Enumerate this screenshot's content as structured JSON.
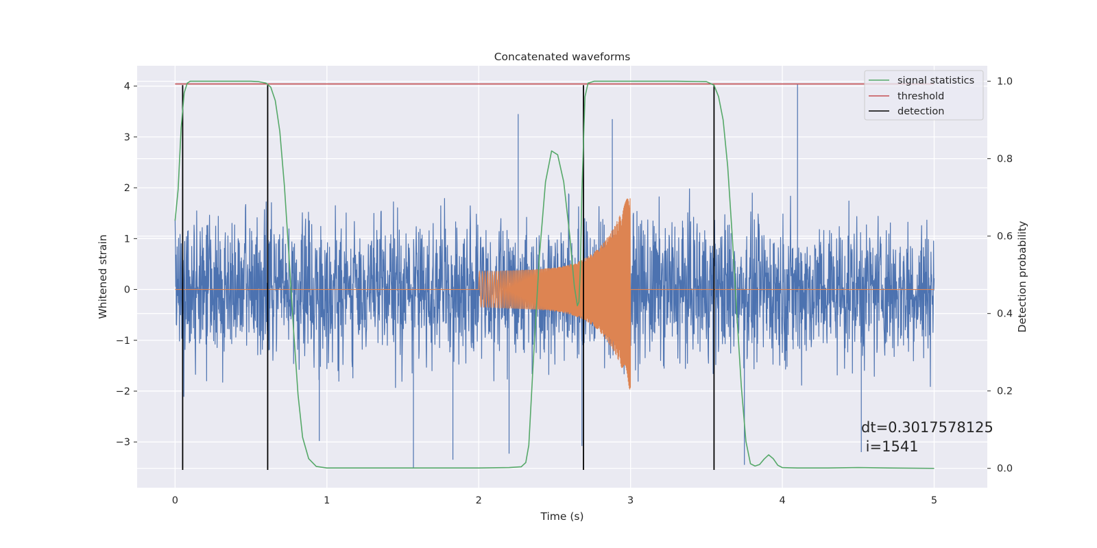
{
  "chart_data": {
    "type": "line",
    "title": "Concatenated waveforms",
    "xlabel": "Time (s)",
    "ylabel": "Whitened strain",
    "y2label": "Detection probability",
    "xlim": [
      -0.25,
      5.35
    ],
    "ylim": [
      -3.9,
      4.4
    ],
    "y2lim": [
      -0.05,
      1.04
    ],
    "x_ticks": [
      0,
      1,
      2,
      3,
      4,
      5
    ],
    "x_tick_labels": [
      "0",
      "1",
      "2",
      "3",
      "4",
      "5"
    ],
    "y_ticks": [
      -3,
      -2,
      -1,
      0,
      1,
      2,
      3,
      4
    ],
    "y_tick_labels": [
      "−3",
      "−2",
      "−1",
      "0",
      "1",
      "2",
      "3",
      "4"
    ],
    "y2_ticks": [
      0,
      0.2,
      0.4,
      0.6,
      0.8,
      1.0
    ],
    "y2_tick_labels": [
      "0.0",
      "0.2",
      "0.4",
      "0.6",
      "0.8",
      "1.0"
    ],
    "grid": true,
    "legend_position": "top-right",
    "colors": {
      "background": "#eaeaf2",
      "grid": "#ffffff",
      "strain": "#4c72b0",
      "injected_waveform": "#dd8452",
      "signal_statistics": "#55a868",
      "threshold": "#c44e52",
      "detection": "#000000"
    },
    "series": [
      {
        "key": "strain",
        "axis": "left",
        "description": "noisy whitened strain, 0–5 s, amplitude mostly within ±2.5 with spikes to ~4",
        "x_range": [
          0,
          5
        ],
        "spikes": [
          {
            "x": 0.61,
            "y": 3.48
          },
          {
            "x": 2.26,
            "y": 3.45
          },
          {
            "x": 2.88,
            "y": 3.35
          },
          {
            "x": 4.1,
            "y": 4.03
          },
          {
            "x": 1.57,
            "y": -3.52
          },
          {
            "x": 1.83,
            "y": -3.35
          },
          {
            "x": 2.2,
            "y": -3.23
          },
          {
            "x": 2.68,
            "y": -3.08
          },
          {
            "x": 3.55,
            "y": -2.98
          },
          {
            "x": 0.95,
            "y": -2.98
          },
          {
            "x": 3.75,
            "y": -3.45
          },
          {
            "x": 4.52,
            "y": -3.2
          }
        ]
      },
      {
        "key": "injected_waveform",
        "axis": "left",
        "description": "chirp from 2.0 s to 3.0 s, amplitude rising from ~0.35 to ~1.9",
        "x_range": [
          2.0,
          3.0
        ],
        "amplitude_start": 0.35,
        "amplitude_end": 1.9
      },
      {
        "name": "signal statistics",
        "key": "signal_statistics",
        "axis": "right",
        "x": [
          0,
          0.02,
          0.04,
          0.06,
          0.08,
          0.1,
          0.2,
          0.3,
          0.4,
          0.5,
          0.55,
          0.6,
          0.63,
          0.66,
          0.69,
          0.72,
          0.75,
          0.78,
          0.81,
          0.84,
          0.88,
          0.93,
          1.0,
          1.5,
          2.0,
          2.2,
          2.28,
          2.31,
          2.33,
          2.36,
          2.4,
          2.44,
          2.48,
          2.52,
          2.56,
          2.6,
          2.63,
          2.65,
          2.66,
          2.67,
          2.68,
          2.7,
          2.72,
          2.76,
          2.8,
          3.0,
          3.3,
          3.5,
          3.55,
          3.58,
          3.61,
          3.64,
          3.67,
          3.7,
          3.73,
          3.76,
          3.79,
          3.82,
          3.85,
          3.88,
          3.91,
          3.94,
          3.97,
          4.0,
          4.1,
          4.3,
          4.5,
          4.7,
          5.0
        ],
        "values": [
          0.64,
          0.72,
          0.88,
          0.97,
          0.995,
          1.0,
          1.0,
          1.0,
          1.0,
          1.0,
          0.999,
          0.995,
          0.985,
          0.95,
          0.87,
          0.73,
          0.55,
          0.36,
          0.19,
          0.08,
          0.025,
          0.005,
          0.001,
          0.001,
          0.001,
          0.002,
          0.004,
          0.015,
          0.06,
          0.28,
          0.55,
          0.74,
          0.82,
          0.81,
          0.74,
          0.6,
          0.47,
          0.42,
          0.43,
          0.52,
          0.72,
          0.96,
          0.995,
          1.0,
          1.0,
          1.0,
          1.0,
          0.999,
          0.99,
          0.96,
          0.9,
          0.78,
          0.6,
          0.4,
          0.21,
          0.07,
          0.012,
          0.006,
          0.01,
          0.024,
          0.035,
          0.025,
          0.008,
          0.002,
          0.001,
          0.001,
          0.002,
          0.001,
          0.0
        ]
      },
      {
        "name": "threshold",
        "key": "threshold",
        "axis": "right",
        "x": [
          0,
          5
        ],
        "values": [
          0.993,
          0.993
        ]
      },
      {
        "name": "detection",
        "key": "detection",
        "axis": "left",
        "vertical_lines_at_x": [
          0.05,
          0.61,
          2.69,
          3.55
        ],
        "y_extent": [
          -3.55,
          4.02
        ]
      }
    ],
    "annotation": {
      "line1": "dt=0.3017578125",
      "line2": " i=1541"
    }
  }
}
